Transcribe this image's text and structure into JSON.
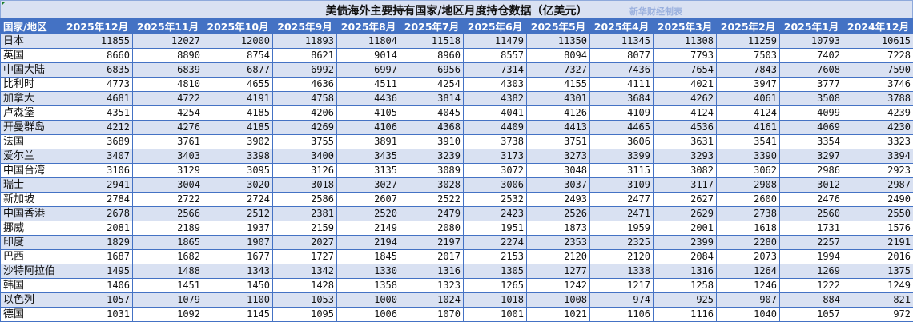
{
  "title": "美债海外主要持有国家/地区月度持仓数据（亿美元）",
  "credit": "新华财经制表",
  "colors": {
    "header_bg": "#4472c4",
    "band_bg": "#d9e1f2",
    "border": "#4472c4",
    "credit": "#9ab0de"
  },
  "table": {
    "headers": [
      "国家/地区",
      "2025年12月",
      "2025年11月",
      "2025年10月",
      "2025年9月",
      "2025年8月",
      "2025年7月",
      "2025年6月",
      "2025年5月",
      "2025年4月",
      "2025年3月",
      "2025年2月",
      "2025年1月",
      "2024年12月"
    ],
    "rows": [
      [
        "日本",
        "11855",
        "12027",
        "12000",
        "11893",
        "11804",
        "11518",
        "11479",
        "11350",
        "11345",
        "11308",
        "11259",
        "10793",
        "10615"
      ],
      [
        "英国",
        "8660",
        "8890",
        "8754",
        "8621",
        "9014",
        "8960",
        "8557",
        "8094",
        "8077",
        "7793",
        "7503",
        "7402",
        "7228"
      ],
      [
        "中国大陆",
        "6835",
        "6839",
        "6877",
        "6992",
        "6997",
        "6956",
        "7314",
        "7327",
        "7436",
        "7654",
        "7843",
        "7608",
        "7590"
      ],
      [
        "比利时",
        "4773",
        "4810",
        "4655",
        "4636",
        "4511",
        "4254",
        "4303",
        "4155",
        "4111",
        "4021",
        "3947",
        "3777",
        "3746"
      ],
      [
        "加拿大",
        "4681",
        "4722",
        "4191",
        "4758",
        "4436",
        "3814",
        "4382",
        "4301",
        "3684",
        "4262",
        "4061",
        "3508",
        "3788"
      ],
      [
        "卢森堡",
        "4351",
        "4254",
        "4185",
        "4206",
        "4105",
        "4045",
        "4041",
        "4126",
        "4109",
        "4124",
        "4124",
        "4099",
        "4239"
      ],
      [
        "开曼群岛",
        "4212",
        "4276",
        "4185",
        "4269",
        "4106",
        "4368",
        "4409",
        "4413",
        "4465",
        "4536",
        "4161",
        "4069",
        "4230"
      ],
      [
        "法国",
        "3689",
        "3761",
        "3902",
        "3755",
        "3891",
        "3910",
        "3738",
        "3751",
        "3606",
        "3631",
        "3541",
        "3354",
        "3323"
      ],
      [
        "爱尔兰",
        "3407",
        "3403",
        "3398",
        "3400",
        "3435",
        "3239",
        "3173",
        "3273",
        "3399",
        "3293",
        "3390",
        "3297",
        "3394"
      ],
      [
        "中国台湾",
        "3106",
        "3129",
        "3095",
        "3126",
        "3135",
        "3089",
        "3072",
        "3048",
        "3115",
        "3082",
        "3062",
        "2986",
        "2923"
      ],
      [
        "瑞士",
        "2941",
        "3004",
        "3020",
        "3018",
        "3027",
        "3028",
        "3006",
        "3037",
        "3109",
        "3117",
        "2908",
        "3012",
        "2987"
      ],
      [
        "新加坡",
        "2784",
        "2722",
        "2724",
        "2586",
        "2607",
        "2522",
        "2532",
        "2493",
        "2477",
        "2627",
        "2600",
        "2476",
        "2490"
      ],
      [
        "中国香港",
        "2678",
        "2566",
        "2512",
        "2381",
        "2520",
        "2479",
        "2423",
        "2526",
        "2471",
        "2629",
        "2738",
        "2560",
        "2550"
      ],
      [
        "挪威",
        "2081",
        "2189",
        "1937",
        "2159",
        "2149",
        "2080",
        "1951",
        "1873",
        "1959",
        "2001",
        "1618",
        "1731",
        "1576"
      ],
      [
        "印度",
        "1829",
        "1865",
        "1907",
        "2027",
        "2194",
        "2197",
        "2274",
        "2353",
        "2325",
        "2399",
        "2280",
        "2257",
        "2191"
      ],
      [
        "巴西",
        "1687",
        "1682",
        "1677",
        "1727",
        "1845",
        "2017",
        "2153",
        "2120",
        "2120",
        "2084",
        "2073",
        "1994",
        "2016"
      ],
      [
        "沙特阿拉伯",
        "1495",
        "1488",
        "1343",
        "1342",
        "1330",
        "1316",
        "1305",
        "1277",
        "1338",
        "1316",
        "1264",
        "1269",
        "1375"
      ],
      [
        "韩国",
        "1406",
        "1451",
        "1450",
        "1428",
        "1358",
        "1323",
        "1265",
        "1242",
        "1217",
        "1258",
        "1246",
        "1222",
        "1249"
      ],
      [
        "以色列",
        "1057",
        "1079",
        "1100",
        "1053",
        "1000",
        "1024",
        "1018",
        "1008",
        "974",
        "925",
        "907",
        "884",
        "821"
      ],
      [
        "德国",
        "1031",
        "1092",
        "1145",
        "1095",
        "1006",
        "1070",
        "1001",
        "1021",
        "1106",
        "1116",
        "1040",
        "1057",
        "972"
      ]
    ]
  }
}
